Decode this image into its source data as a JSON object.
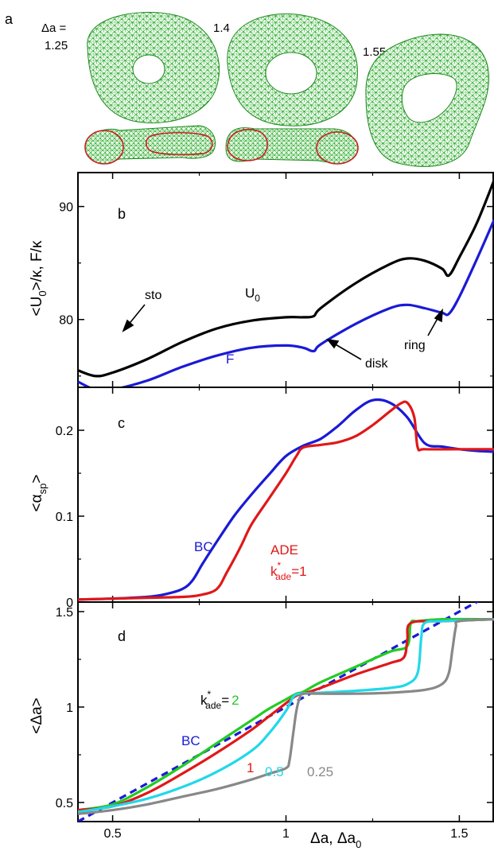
{
  "panel_a": {
    "label": "a",
    "delta_label_top": "Δa =",
    "delta_values": [
      "1.25",
      "1.4",
      "1.55"
    ],
    "mesh_color": "#22aa22",
    "rim_color": "#cc2222"
  },
  "chart_data": [
    {
      "panel": "b",
      "type": "line",
      "ylabel": "<U0>/κ, F/κ",
      "xlim": [
        0.4,
        1.6
      ],
      "ylim": [
        74,
        93
      ],
      "yticks": [
        80,
        90
      ],
      "series": [
        {
          "name": "U0",
          "color": "#000000",
          "x": [
            0.4,
            0.45,
            0.5,
            0.6,
            0.7,
            0.8,
            0.9,
            1.0,
            1.05,
            1.08,
            1.1,
            1.2,
            1.3,
            1.35,
            1.4,
            1.45,
            1.47,
            1.5,
            1.55,
            1.6
          ],
          "y": [
            75.5,
            75.0,
            75.3,
            76.5,
            78.0,
            79.2,
            79.9,
            80.2,
            80.2,
            80.3,
            81.0,
            83.2,
            84.9,
            85.4,
            85.2,
            84.5,
            83.9,
            85.5,
            88.5,
            92.3
          ]
        },
        {
          "name": "F",
          "color": "#1a1ad6",
          "x": [
            0.4,
            0.45,
            0.5,
            0.6,
            0.7,
            0.8,
            0.9,
            1.0,
            1.05,
            1.08,
            1.1,
            1.2,
            1.3,
            1.35,
            1.4,
            1.45,
            1.47,
            1.5,
            1.55,
            1.6
          ],
          "y": [
            74.5,
            73.8,
            73.8,
            74.6,
            75.8,
            76.8,
            77.5,
            77.7,
            77.5,
            77.2,
            77.8,
            79.6,
            81.0,
            81.3,
            81.0,
            80.6,
            80.5,
            82.0,
            85.3,
            88.8
          ]
        }
      ],
      "labels": {
        "panel": "b",
        "U0": "U",
        "U0_sub": "0",
        "F": "F",
        "sto": "sto",
        "disk": "disk",
        "ring": "ring"
      }
    },
    {
      "panel": "c",
      "type": "line",
      "ylabel": "<αsp>",
      "xlim": [
        0.4,
        1.6
      ],
      "ylim": [
        0,
        0.25
      ],
      "yticks": [
        0,
        0.1,
        0.2
      ],
      "series": [
        {
          "name": "BC",
          "color": "#1a1ad6",
          "x": [
            0.4,
            0.5,
            0.6,
            0.65,
            0.7,
            0.73,
            0.76,
            0.8,
            0.85,
            0.9,
            0.95,
            1.0,
            1.05,
            1.1,
            1.15,
            1.2,
            1.25,
            1.3,
            1.35,
            1.4,
            1.45,
            1.5,
            1.55,
            1.6
          ],
          "y": [
            0.003,
            0.004,
            0.006,
            0.009,
            0.015,
            0.025,
            0.045,
            0.07,
            0.1,
            0.125,
            0.148,
            0.17,
            0.182,
            0.19,
            0.205,
            0.223,
            0.235,
            0.232,
            0.215,
            0.185,
            0.181,
            0.178,
            0.176,
            0.175
          ]
        },
        {
          "name": "ADE",
          "color": "#e01818",
          "x": [
            0.4,
            0.5,
            0.6,
            0.7,
            0.75,
            0.8,
            0.83,
            0.87,
            0.9,
            0.95,
            1.0,
            1.03,
            1.05,
            1.1,
            1.15,
            1.2,
            1.25,
            1.3,
            1.33,
            1.35,
            1.37,
            1.38,
            1.4,
            1.5,
            1.6
          ],
          "y": [
            0.003,
            0.004,
            0.005,
            0.006,
            0.008,
            0.015,
            0.035,
            0.065,
            0.09,
            0.12,
            0.15,
            0.17,
            0.18,
            0.183,
            0.186,
            0.193,
            0.206,
            0.222,
            0.231,
            0.232,
            0.215,
            0.18,
            0.178,
            0.178,
            0.178
          ]
        }
      ],
      "labels": {
        "panel": "c",
        "BC": "BC",
        "ADE": "ADE",
        "kade_k": "k",
        "kade_star": "*",
        "kade_sub": "ade",
        "kade_val": "=1"
      }
    },
    {
      "panel": "d",
      "type": "line",
      "ylabel": "<Δa>",
      "xlabel": "Δa, Δa0",
      "xlim": [
        0.4,
        1.6
      ],
      "ylim": [
        0.4,
        1.55
      ],
      "xticks": [
        0.5,
        1,
        1.5
      ],
      "yticks": [
        0.5,
        1,
        1.5
      ],
      "series": [
        {
          "name": "BC",
          "color": "#1a1ad6",
          "dashed": true,
          "x": [
            0.4,
            1.6
          ],
          "y": [
            0.4,
            1.6
          ]
        },
        {
          "name": "k*ade=2",
          "color": "#22cc22",
          "x": [
            0.4,
            0.5,
            0.6,
            0.7,
            0.8,
            0.9,
            0.95,
            1.0,
            1.03,
            1.05,
            1.1,
            1.2,
            1.3,
            1.35,
            1.36,
            1.38,
            1.45,
            1.6
          ],
          "y": [
            0.46,
            0.49,
            0.58,
            0.69,
            0.81,
            0.93,
            0.99,
            1.04,
            1.07,
            1.08,
            1.13,
            1.21,
            1.29,
            1.32,
            1.44,
            1.45,
            1.46,
            1.46
          ]
        },
        {
          "name": "k*ade=1",
          "color": "#e01818",
          "x": [
            0.4,
            0.5,
            0.6,
            0.7,
            0.8,
            0.9,
            0.95,
            1.0,
            1.03,
            1.05,
            1.1,
            1.2,
            1.3,
            1.34,
            1.35,
            1.36,
            1.45,
            1.6
          ],
          "y": [
            0.46,
            0.48,
            0.55,
            0.65,
            0.76,
            0.88,
            0.95,
            1.02,
            1.06,
            1.07,
            1.1,
            1.17,
            1.23,
            1.26,
            1.35,
            1.44,
            1.45,
            1.46
          ]
        },
        {
          "name": "k*ade=0.5",
          "color": "#22d8e8",
          "x": [
            0.4,
            0.5,
            0.6,
            0.7,
            0.8,
            0.9,
            0.95,
            1.0,
            1.02,
            1.04,
            1.1,
            1.2,
            1.3,
            1.35,
            1.38,
            1.39,
            1.4,
            1.45,
            1.6
          ],
          "y": [
            0.45,
            0.48,
            0.52,
            0.58,
            0.66,
            0.77,
            0.86,
            0.98,
            1.05,
            1.07,
            1.075,
            1.085,
            1.1,
            1.12,
            1.18,
            1.36,
            1.44,
            1.45,
            1.46
          ]
        },
        {
          "name": "k*ade=0.25",
          "color": "#888888",
          "x": [
            0.4,
            0.5,
            0.6,
            0.7,
            0.8,
            0.9,
            0.95,
            1.0,
            1.01,
            1.02,
            1.03,
            1.04,
            1.05,
            1.1,
            1.2,
            1.3,
            1.4,
            1.45,
            1.47,
            1.48,
            1.49,
            1.5,
            1.6
          ],
          "y": [
            0.44,
            0.46,
            0.49,
            0.53,
            0.57,
            0.62,
            0.65,
            0.68,
            0.72,
            0.85,
            0.98,
            1.05,
            1.07,
            1.07,
            1.07,
            1.075,
            1.09,
            1.12,
            1.18,
            1.3,
            1.42,
            1.45,
            1.46
          ]
        }
      ],
      "labels": {
        "panel": "d",
        "BC": "BC",
        "k": "k",
        "star": "*",
        "ade_sub": "ade",
        "eq": "=",
        "two": "2",
        "one": "1",
        "half": "0.5",
        "quarter": "0.25",
        "xlabel_main": "Δa, Δa",
        "xlabel_sub": "0"
      }
    }
  ]
}
